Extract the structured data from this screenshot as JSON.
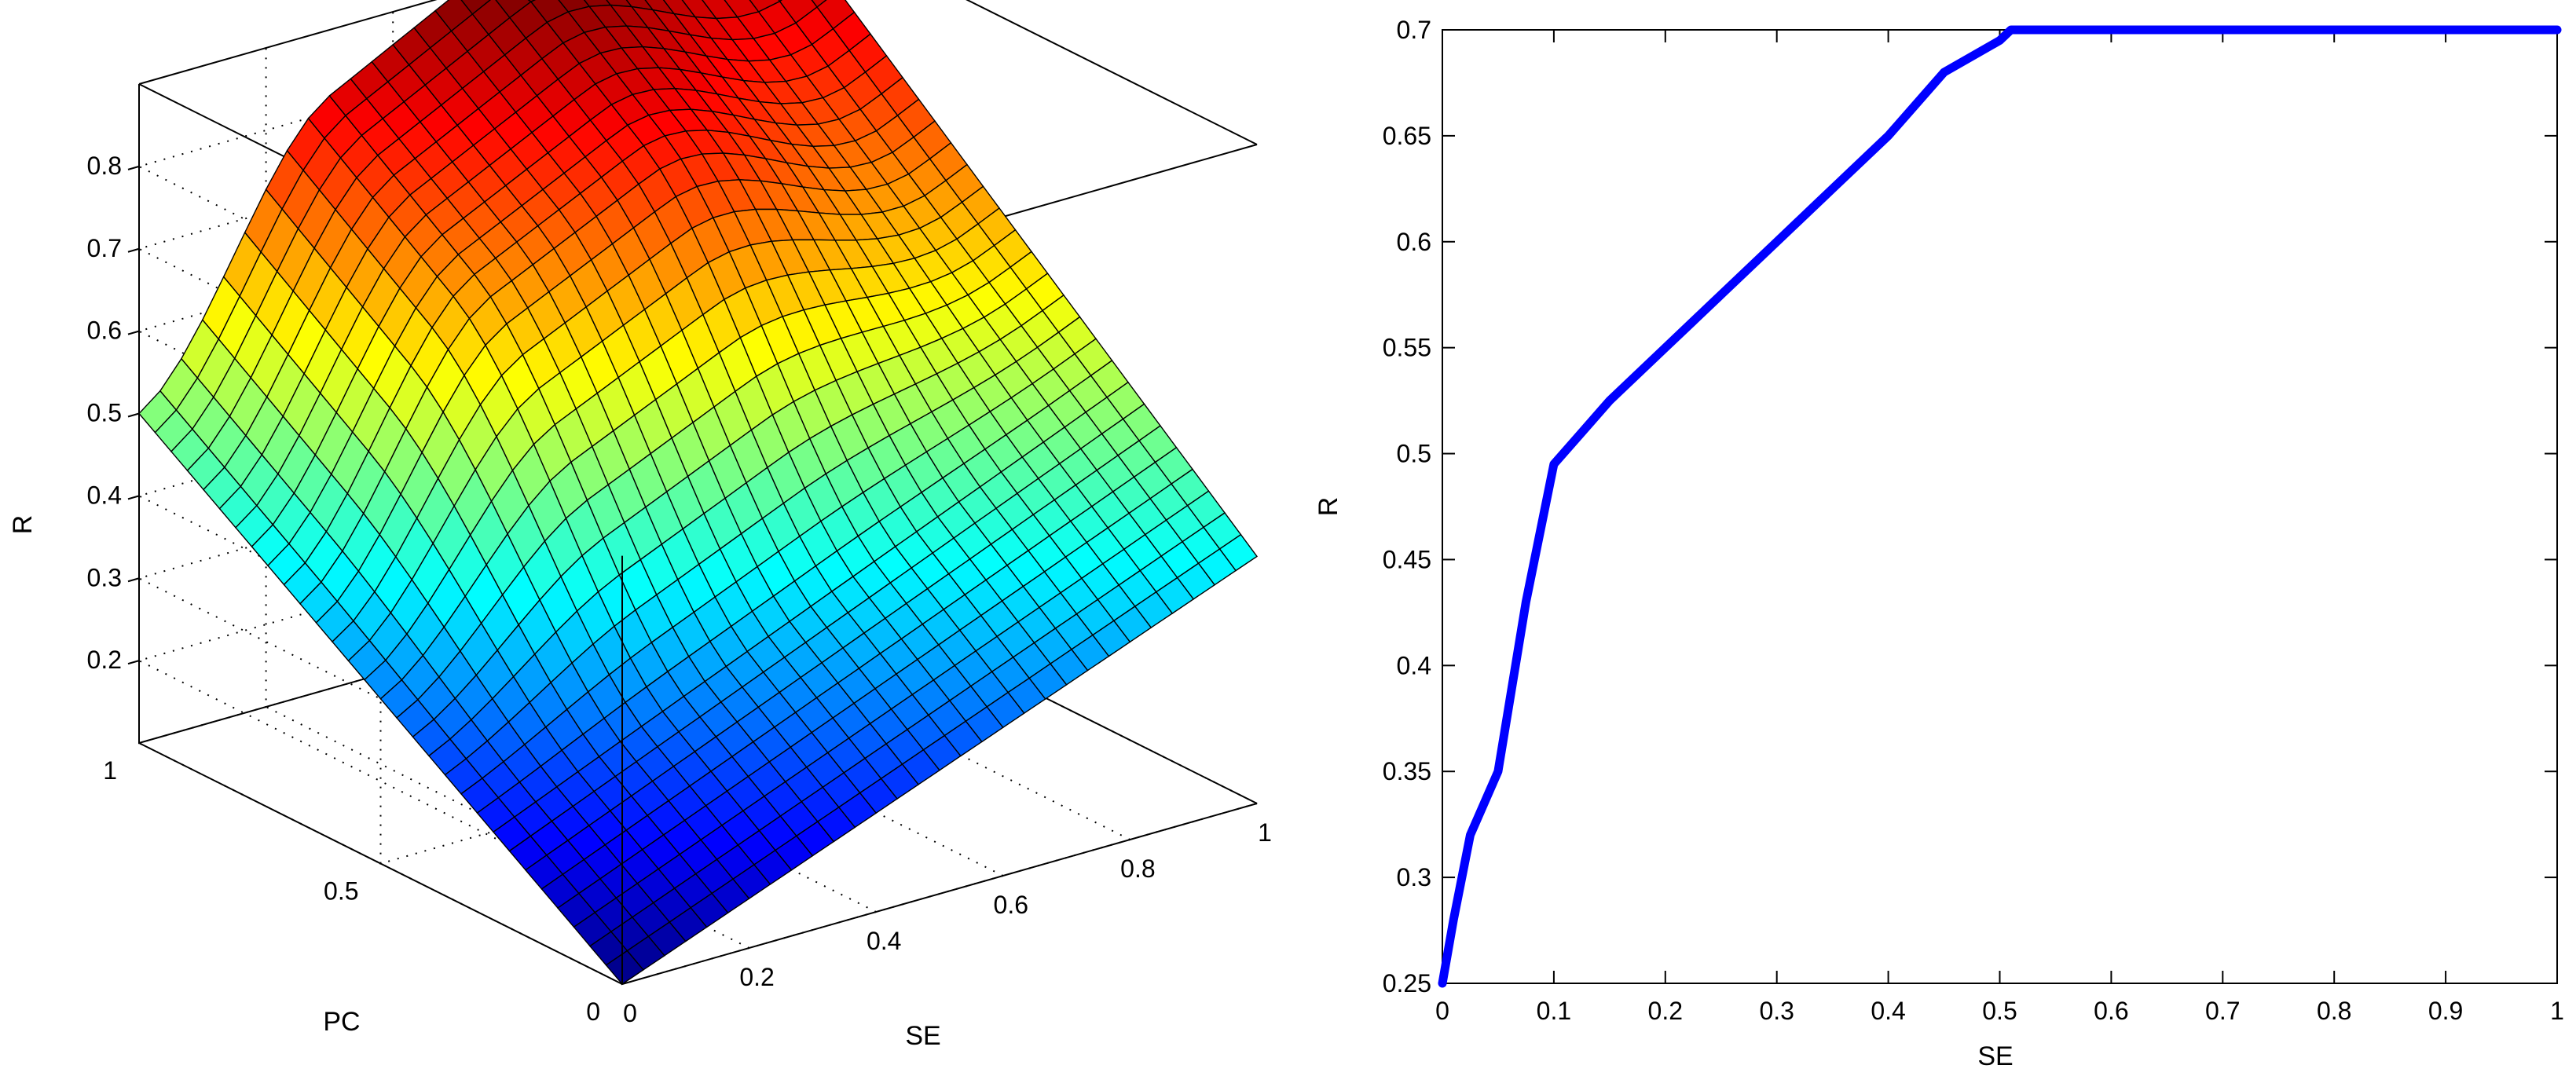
{
  "chart_data": [
    {
      "type": "surface",
      "xlabel": "SE",
      "ylabel": "PC",
      "zlabel": "R",
      "xlim": [
        0,
        1
      ],
      "ylim": [
        0,
        1
      ],
      "zlim": [
        0.1,
        0.9
      ],
      "x_ticks": [
        "0",
        "0.2",
        "0.4",
        "0.6",
        "0.8",
        "1"
      ],
      "y_ticks": [
        "0",
        "0.5",
        "1"
      ],
      "z_ticks": [
        "0.2",
        "0.3",
        "0.4",
        "0.5",
        "0.6",
        "0.7",
        "0.8"
      ],
      "grid": true,
      "colormap": "jet",
      "z_at_corners": [
        {
          "x": 0,
          "y": 0,
          "z": 0.1
        },
        {
          "x": 0,
          "y": 1,
          "z": 0.5
        },
        {
          "x": 1,
          "y": 0,
          "z": 0.4
        },
        {
          "x": 1,
          "y": 1,
          "z": 0.9
        }
      ]
    },
    {
      "type": "line",
      "xlabel": "SE",
      "ylabel": "R",
      "xlim": [
        0,
        1
      ],
      "ylim": [
        0.25,
        0.7
      ],
      "x_ticks": [
        "0",
        "0.1",
        "0.2",
        "0.3",
        "0.4",
        "0.5",
        "0.6",
        "0.7",
        "0.8",
        "0.9",
        "1"
      ],
      "y_ticks": [
        "0.25",
        "0.3",
        "0.35",
        "0.4",
        "0.45",
        "0.5",
        "0.55",
        "0.6",
        "0.65",
        "0.7"
      ],
      "grid": false,
      "series": [
        {
          "color": "#0000ff",
          "x": [
            0,
            0.01,
            0.025,
            0.05,
            0.075,
            0.1,
            0.125,
            0.15,
            0.2,
            0.25,
            0.3,
            0.35,
            0.4,
            0.45,
            0.5,
            0.51,
            0.6,
            0.7,
            0.8,
            0.9,
            1
          ],
          "y": [
            0.25,
            0.28,
            0.32,
            0.35,
            0.43,
            0.495,
            0.51,
            0.525,
            0.55,
            0.575,
            0.6,
            0.625,
            0.65,
            0.68,
            0.695,
            0.7,
            0.7,
            0.7,
            0.7,
            0.7,
            0.7
          ]
        }
      ]
    }
  ]
}
